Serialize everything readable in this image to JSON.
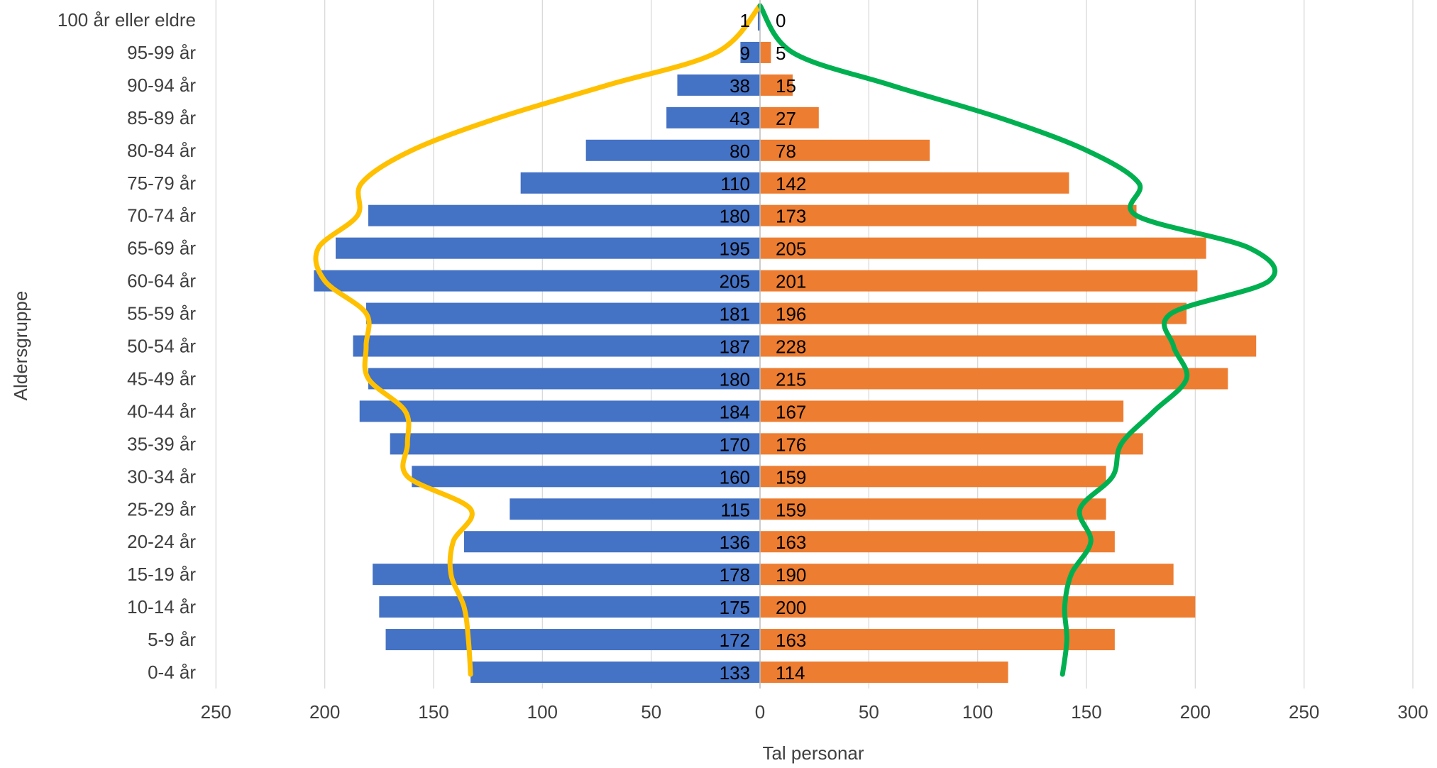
{
  "chart_data": {
    "type": "bar",
    "orientation": "horizontal",
    "layout": "population-pyramid",
    "xlabel": "Tal personar",
    "ylabel": "Aldersgruppe",
    "xlim": [
      -250,
      300
    ],
    "x_ticks": [
      -250,
      -200,
      -150,
      -100,
      -50,
      0,
      50,
      100,
      150,
      200,
      250,
      300
    ],
    "x_tick_labels": [
      "250",
      "200",
      "150",
      "100",
      "50",
      "0",
      "50",
      "100",
      "150",
      "200",
      "250",
      "300"
    ],
    "grid": "vertical",
    "legend": "none",
    "categories": [
      "0-4 år",
      "5-9 år",
      "10-14 år",
      "15-19 år",
      "20-24 år",
      "25-29 år",
      "30-34 år",
      "35-39 år",
      "40-44 år",
      "45-49 år",
      "50-54 år",
      "55-59 år",
      "60-64 år",
      "65-69 år",
      "70-74 år",
      "75-79 år",
      "80-84 år",
      "85-89 år",
      "90-94 år",
      "95-99 år",
      "100 år eller eldre"
    ],
    "series": [
      {
        "side": "left",
        "color": "#4472C4",
        "values": [
          133,
          172,
          175,
          178,
          136,
          115,
          160,
          170,
          184,
          180,
          187,
          181,
          205,
          195,
          180,
          110,
          80,
          43,
          38,
          9,
          1
        ]
      },
      {
        "side": "right",
        "color": "#ED7D31",
        "values": [
          114,
          163,
          200,
          190,
          163,
          159,
          159,
          176,
          167,
          215,
          228,
          196,
          201,
          205,
          173,
          142,
          78,
          27,
          15,
          5,
          0
        ]
      }
    ],
    "overlay_lines": [
      {
        "side": "left",
        "color": "#FFC000",
        "values": [
          133,
          134,
          136,
          142,
          141,
          133,
          162,
          162,
          163,
          180,
          181,
          181,
          200,
          203,
          185,
          183,
          160,
          120,
          70,
          20,
          0
        ]
      },
      {
        "side": "right",
        "color": "#00B050",
        "values": [
          139,
          141,
          140,
          143,
          152,
          147,
          162,
          166,
          181,
          196,
          190,
          189,
          234,
          225,
          173,
          174,
          150,
          110,
          60,
          15,
          0
        ]
      }
    ]
  }
}
